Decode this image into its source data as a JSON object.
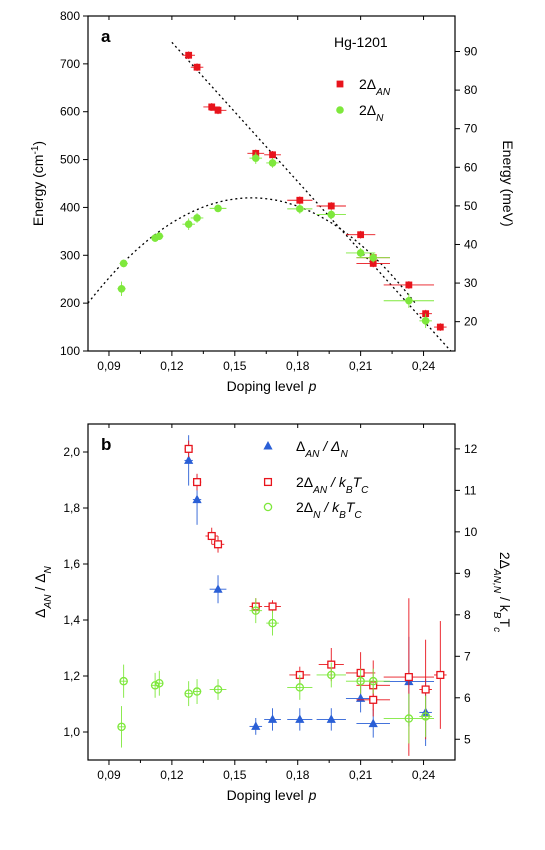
{
  "chart_data": [
    {
      "type": "scatter",
      "panel_label": "a",
      "annotation": "Hg-1201",
      "xlabel": "Doping level",
      "xlabel_var": "p",
      "ylabel": "Energy (cm",
      "ylabel_sup": "-1",
      "ylabel_close": ")",
      "ylabel_right": "Energy (meV)",
      "xlim": [
        0.08,
        0.255
      ],
      "ylim": [
        100,
        800
      ],
      "ylim_right": [
        12.4,
        99.2
      ],
      "x_ticks": [
        0.09,
        0.12,
        0.15,
        0.18,
        0.21,
        0.24
      ],
      "x_tick_labels": [
        "0,09",
        "0,12",
        "0,15",
        "0,18",
        "0,21",
        "0,24"
      ],
      "y_ticks": [
        100,
        200,
        300,
        400,
        500,
        600,
        700,
        800
      ],
      "y_tick_labels": [
        "100",
        "200",
        "300",
        "400",
        "500",
        "600",
        "700",
        "800"
      ],
      "y_ticks_right": [
        20,
        30,
        40,
        50,
        60,
        70,
        80,
        90
      ],
      "y_tick_labels_right": [
        "20",
        "30",
        "40",
        "50",
        "60",
        "70",
        "80",
        "90"
      ],
      "legend_position": "top-right",
      "series": [
        {
          "name": "2Δ",
          "name_sub": "AN",
          "marker": "filled-square",
          "color": "#e8141c",
          "points": [
            {
              "x": 0.128,
              "y": 718,
              "xerr": 0.003,
              "yerr": 8
            },
            {
              "x": 0.132,
              "y": 693,
              "xerr": 0.003,
              "yerr": 8
            },
            {
              "x": 0.139,
              "y": 610,
              "xerr": 0.004,
              "yerr": 8
            },
            {
              "x": 0.142,
              "y": 603,
              "xerr": 0.004,
              "yerr": 8
            },
            {
              "x": 0.16,
              "y": 513,
              "xerr": 0.004,
              "yerr": 8
            },
            {
              "x": 0.168,
              "y": 510,
              "xerr": 0.004,
              "yerr": 8
            },
            {
              "x": 0.181,
              "y": 415,
              "xerr": 0.006,
              "yerr": 8
            },
            {
              "x": 0.196,
              "y": 403,
              "xerr": 0.007,
              "yerr": 8
            },
            {
              "x": 0.21,
              "y": 343,
              "xerr": 0.007,
              "yerr": 8
            },
            {
              "x": 0.216,
              "y": 295,
              "xerr": 0.008,
              "yerr": 8
            },
            {
              "x": 0.216,
              "y": 283,
              "xerr": 0.008,
              "yerr": 8
            },
            {
              "x": 0.233,
              "y": 238,
              "xerr": 0.012,
              "yerr": 8
            },
            {
              "x": 0.241,
              "y": 178,
              "xerr": 0.003,
              "yerr": 8
            },
            {
              "x": 0.248,
              "y": 150,
              "xerr": 0.003,
              "yerr": 8
            }
          ]
        },
        {
          "name": "2Δ",
          "name_sub": "N",
          "marker": "filled-circle",
          "color": "#7ee83c",
          "points": [
            {
              "x": 0.097,
              "y": 283,
              "xerr": 0.002,
              "yerr": 8
            },
            {
              "x": 0.096,
              "y": 230,
              "xerr": 0.002,
              "yerr": 15
            },
            {
              "x": 0.112,
              "y": 336,
              "xerr": 0.002,
              "yerr": 8
            },
            {
              "x": 0.114,
              "y": 340,
              "xerr": 0.002,
              "yerr": 8
            },
            {
              "x": 0.128,
              "y": 365,
              "xerr": 0.003,
              "yerr": 12
            },
            {
              "x": 0.132,
              "y": 378,
              "xerr": 0.003,
              "yerr": 10
            },
            {
              "x": 0.142,
              "y": 398,
              "xerr": 0.004,
              "yerr": 8
            },
            {
              "x": 0.16,
              "y": 503,
              "xerr": 0.003,
              "yerr": 12
            },
            {
              "x": 0.168,
              "y": 493,
              "xerr": 0.003,
              "yerr": 10
            },
            {
              "x": 0.181,
              "y": 397,
              "xerr": 0.006,
              "yerr": 10
            },
            {
              "x": 0.196,
              "y": 385,
              "xerr": 0.007,
              "yerr": 10
            },
            {
              "x": 0.21,
              "y": 305,
              "xerr": 0.007,
              "yerr": 10
            },
            {
              "x": 0.216,
              "y": 295,
              "xerr": 0.008,
              "yerr": 10
            },
            {
              "x": 0.233,
              "y": 205,
              "xerr": 0.012,
              "yerr": 15
            },
            {
              "x": 0.241,
              "y": 163,
              "xerr": 0.003,
              "yerr": 15
            }
          ]
        }
      ],
      "fit_lines": [
        {
          "style": "dotted",
          "kind": "line",
          "from": [
            0.12,
            745
          ],
          "to": [
            0.253,
            100
          ]
        },
        {
          "style": "dotted",
          "kind": "parabola",
          "vertex": [
            0.158,
            420
          ],
          "through": [
            0.08,
            200
          ]
        }
      ]
    },
    {
      "type": "scatter",
      "panel_label": "b",
      "xlabel": "Doping level",
      "xlabel_var": "p",
      "ylabel": "Δ",
      "ylabel_sub": "AN",
      "ylabel_mid": " / Δ",
      "ylabel_sub2": "N",
      "ylabel_right": "2Δ",
      "ylabel_right_sub": "AN,N",
      "ylabel_right_mid": " / k",
      "ylabel_right_sub2": "B",
      "ylabel_right_end": "T",
      "ylabel_right_sub3": "c",
      "xlim": [
        0.08,
        0.255
      ],
      "ylim": [
        0.9,
        2.1
      ],
      "ylim_right": [
        4.5,
        12.6
      ],
      "x_ticks": [
        0.09,
        0.12,
        0.15,
        0.18,
        0.21,
        0.24
      ],
      "x_tick_labels": [
        "0,09",
        "0,12",
        "0,15",
        "0,18",
        "0,21",
        "0,24"
      ],
      "y_ticks": [
        1.0,
        1.2,
        1.4,
        1.6,
        1.8,
        2.0
      ],
      "y_tick_labels": [
        "1,0",
        "1,2",
        "1,4",
        "1,6",
        "1,8",
        "2,0"
      ],
      "y_ticks_right": [
        5,
        6,
        7,
        8,
        9,
        10,
        11,
        12
      ],
      "y_tick_labels_right": [
        "5",
        "6",
        "7",
        "8",
        "9",
        "10",
        "11",
        "12"
      ],
      "legend_position": "top-right",
      "series": [
        {
          "name": "Δ",
          "name_sub": "AN",
          "name_mid": " / Δ",
          "name_sub2": "N",
          "marker": "filled-triangle",
          "color": "#2a5fd6",
          "axis": "left",
          "points": [
            {
              "x": 0.128,
              "y": 1.97,
              "xerr": 0.002,
              "yerr": 0.09
            },
            {
              "x": 0.132,
              "y": 1.83,
              "xerr": 0.002,
              "yerr": 0.09
            },
            {
              "x": 0.142,
              "y": 1.51,
              "xerr": 0.004,
              "yerr": 0.05
            },
            {
              "x": 0.16,
              "y": 1.02,
              "xerr": 0.003,
              "yerr": 0.03
            },
            {
              "x": 0.168,
              "y": 1.045,
              "xerr": 0.004,
              "yerr": 0.04
            },
            {
              "x": 0.181,
              "y": 1.045,
              "xerr": 0.006,
              "yerr": 0.04
            },
            {
              "x": 0.196,
              "y": 1.045,
              "xerr": 0.007,
              "yerr": 0.04
            },
            {
              "x": 0.21,
              "y": 1.12,
              "xerr": 0.007,
              "yerr": 0.05
            },
            {
              "x": 0.216,
              "y": 1.03,
              "xerr": 0.008,
              "yerr": 0.05
            },
            {
              "x": 0.233,
              "y": 1.18,
              "xerr": 0.012,
              "yerr": 0.16
            },
            {
              "x": 0.241,
              "y": 1.07,
              "xerr": 0.003,
              "yerr": 0.12
            }
          ]
        },
        {
          "name": "2Δ",
          "name_sub": "AN",
          "name_mid": " / k",
          "name_sub2": "B",
          "name_end": "T",
          "name_sub3": "C",
          "marker": "open-square",
          "color": "#e8141c",
          "axis": "right",
          "points": [
            {
              "x": 0.128,
              "y": 12.0,
              "xerr": 0.002,
              "yerr": 0.2
            },
            {
              "x": 0.132,
              "y": 11.2,
              "xerr": 0.002,
              "yerr": 0.2
            },
            {
              "x": 0.139,
              "y": 9.9,
              "xerr": 0.003,
              "yerr": 0.2
            },
            {
              "x": 0.142,
              "y": 9.7,
              "xerr": 0.003,
              "yerr": 0.2
            },
            {
              "x": 0.16,
              "y": 8.2,
              "xerr": 0.003,
              "yerr": 0.2
            },
            {
              "x": 0.168,
              "y": 8.2,
              "xerr": 0.004,
              "yerr": 0.15
            },
            {
              "x": 0.181,
              "y": 6.55,
              "xerr": 0.005,
              "yerr": 0.2
            },
            {
              "x": 0.196,
              "y": 6.8,
              "xerr": 0.006,
              "yerr": 0.4
            },
            {
              "x": 0.21,
              "y": 6.6,
              "xerr": 0.007,
              "yerr": 0.5
            },
            {
              "x": 0.216,
              "y": 6.3,
              "xerr": 0.008,
              "yerr": 0.6
            },
            {
              "x": 0.216,
              "y": 5.95,
              "xerr": 0.008,
              "yerr": 0.4
            },
            {
              "x": 0.233,
              "y": 6.5,
              "xerr": 0.012,
              "yerr": 1.9
            },
            {
              "x": 0.241,
              "y": 6.2,
              "xerr": 0.003,
              "yerr": 1.2
            },
            {
              "x": 0.248,
              "y": 6.55,
              "xerr": 0.003,
              "yerr": 1.3
            }
          ]
        },
        {
          "name": "2Δ",
          "name_sub": "N",
          "name_mid": " / k",
          "name_sub2": "B",
          "name_end": "T",
          "name_sub3": "C",
          "marker": "open-circle",
          "color": "#7ee83c",
          "axis": "right",
          "points": [
            {
              "x": 0.097,
              "y": 6.4,
              "xerr": 0.002,
              "yerr": 0.4
            },
            {
              "x": 0.096,
              "y": 5.3,
              "xerr": 0.002,
              "yerr": 0.5
            },
            {
              "x": 0.112,
              "y": 6.3,
              "xerr": 0.002,
              "yerr": 0.3
            },
            {
              "x": 0.114,
              "y": 6.35,
              "xerr": 0.002,
              "yerr": 0.3
            },
            {
              "x": 0.128,
              "y": 6.1,
              "xerr": 0.002,
              "yerr": 0.3
            },
            {
              "x": 0.132,
              "y": 6.15,
              "xerr": 0.002,
              "yerr": 0.3
            },
            {
              "x": 0.142,
              "y": 6.2,
              "xerr": 0.004,
              "yerr": 0.25
            },
            {
              "x": 0.16,
              "y": 8.1,
              "xerr": 0.003,
              "yerr": 0.3
            },
            {
              "x": 0.168,
              "y": 7.8,
              "xerr": 0.003,
              "yerr": 0.3
            },
            {
              "x": 0.181,
              "y": 6.25,
              "xerr": 0.006,
              "yerr": 0.3
            },
            {
              "x": 0.196,
              "y": 6.55,
              "xerr": 0.007,
              "yerr": 0.3
            },
            {
              "x": 0.21,
              "y": 6.4,
              "xerr": 0.007,
              "yerr": 0.3
            },
            {
              "x": 0.216,
              "y": 6.4,
              "xerr": 0.008,
              "yerr": 0.3
            },
            {
              "x": 0.233,
              "y": 5.5,
              "xerr": 0.012,
              "yerr": 0.6
            },
            {
              "x": 0.241,
              "y": 5.55,
              "xerr": 0.003,
              "yerr": 0.5
            }
          ]
        }
      ]
    }
  ]
}
